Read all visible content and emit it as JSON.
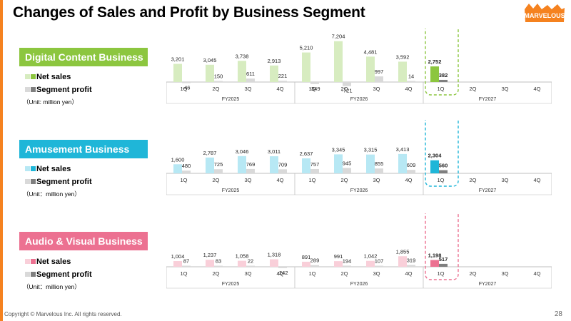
{
  "title": "Changes of Sales and Profit by Business Segment",
  "logo_text": "MARVELOUS",
  "footer": "Copyright © Marvelous Inc. All rights reserved.",
  "page_number": "28",
  "colors": {
    "accent_orange": "#f5821f",
    "profit_grey_light": "#d9d9d9",
    "profit_grey_dark": "#7f7f7f"
  },
  "segments": [
    {
      "label": "Digital Content Business",
      "label_color": "#8cc63f",
      "sales_light": "#d7ecc0",
      "sales_dark": "#8cc63f",
      "highlight_border": "#8cc63f",
      "legend_sales": "Net sales",
      "legend_profit": "Segment profit",
      "unit": "（Unit: million yen）"
    },
    {
      "label": "Amusement Business",
      "label_color": "#1fb6d8",
      "sales_light": "#b7e8f4",
      "sales_dark": "#1fb6d8",
      "highlight_border": "#1fb6d8",
      "legend_sales": "Net sales",
      "legend_profit": "Segment profit",
      "unit": "（Unit：million yen）"
    },
    {
      "label": "Audio & Visual Business",
      "label_color": "#ec7191",
      "sales_light": "#f9cfd9",
      "sales_dark": "#ec7191",
      "highlight_border": "#ec7191",
      "legend_sales": "Net sales",
      "legend_profit": "Segment profit",
      "unit": "（Unit：million yen）"
    }
  ],
  "chart_data": [
    {
      "type": "bar",
      "title": "Digital Content Business",
      "categories": [
        "1Q",
        "2Q",
        "3Q",
        "4Q",
        "1Q",
        "2Q",
        "3Q",
        "4Q",
        "1Q",
        "2Q",
        "3Q",
        "4Q"
      ],
      "groups": [
        "FY2025",
        "FY2026",
        "FY2027"
      ],
      "series": [
        {
          "name": "Net sales",
          "values": [
            3201,
            3045,
            3738,
            2913,
            5210,
            7204,
            4481,
            3592,
            2752,
            null,
            null,
            null
          ]
        },
        {
          "name": "Segment profit",
          "values": [
            -46,
            150,
            611,
            221,
            -349,
            -721,
            997,
            14,
            382,
            null,
            null,
            null
          ]
        }
      ]
    },
    {
      "type": "bar",
      "title": "Amusement Business",
      "categories": [
        "1Q",
        "2Q",
        "3Q",
        "4Q",
        "1Q",
        "2Q",
        "3Q",
        "4Q",
        "1Q",
        "2Q",
        "3Q",
        "4Q"
      ],
      "groups": [
        "FY2025",
        "FY2026",
        "FY2027"
      ],
      "series": [
        {
          "name": "Net sales",
          "values": [
            1600,
            2787,
            3046,
            3011,
            2637,
            3345,
            3315,
            3413,
            2304,
            null,
            null,
            null
          ]
        },
        {
          "name": "Segment profit",
          "values": [
            480,
            725,
            769,
            709,
            757,
            945,
            855,
            609,
            560,
            null,
            null,
            null
          ]
        }
      ]
    },
    {
      "type": "bar",
      "title": "Audio & Visual Business",
      "categories": [
        "1Q",
        "2Q",
        "3Q",
        "4Q",
        "1Q",
        "2Q",
        "3Q",
        "4Q",
        "1Q",
        "2Q",
        "3Q",
        "4Q"
      ],
      "groups": [
        "FY2025",
        "FY2026",
        "FY2027"
      ],
      "series": [
        {
          "name": "Net sales",
          "values": [
            1004,
            1237,
            1058,
            1318,
            891,
            991,
            1042,
            1855,
            1198,
            null,
            null,
            null
          ]
        },
        {
          "name": "Segment profit",
          "values": [
            87,
            83,
            22,
            -242,
            289,
            194,
            107,
            319,
            517,
            null,
            null,
            null
          ]
        }
      ]
    }
  ]
}
